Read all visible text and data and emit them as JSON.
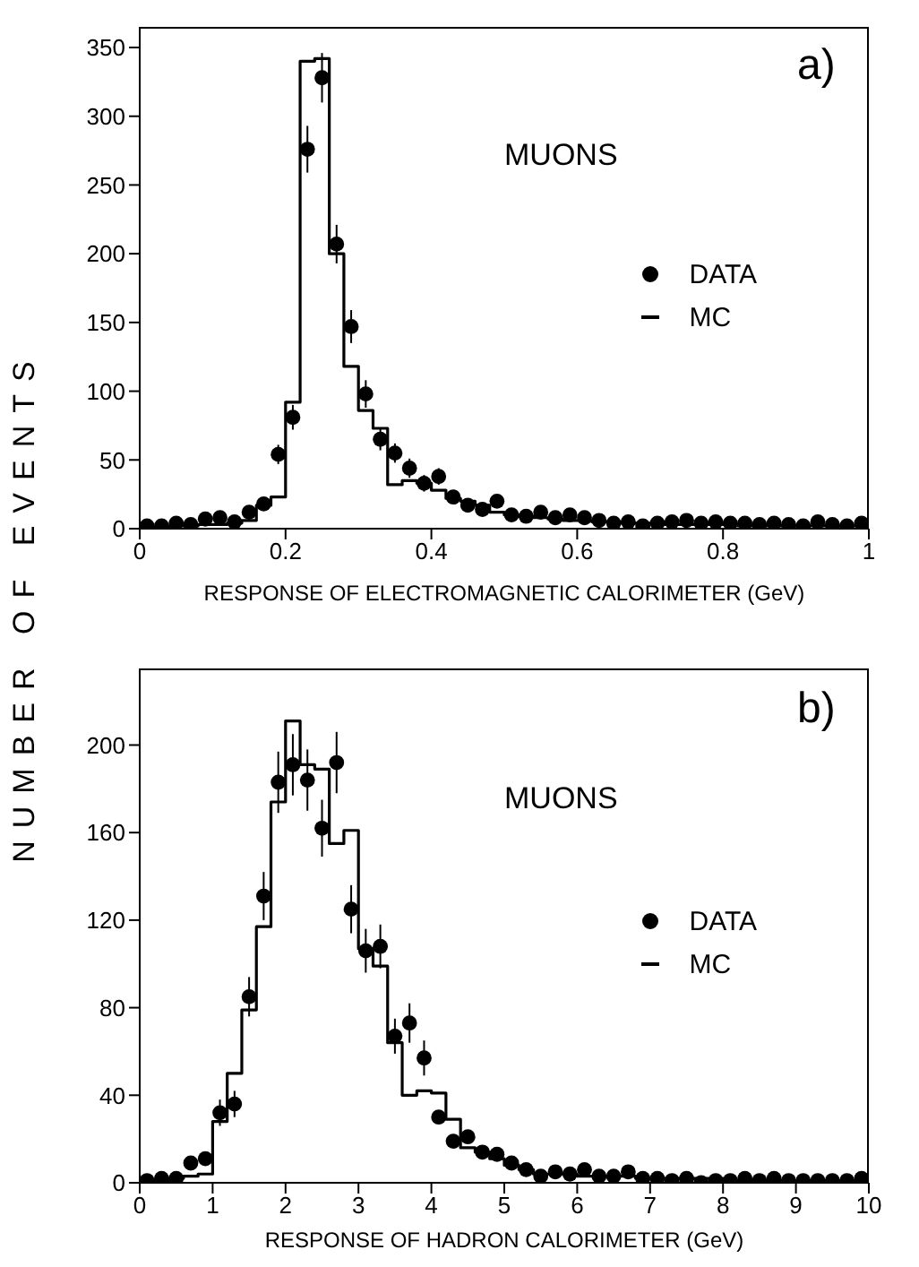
{
  "chart_data": [
    {
      "type": "histogram",
      "xlabel": "RESPONSE OF ELECTROMAGNETIC CALORIMETER (GeV)",
      "ylabel": "NUMBER OF EVENTS",
      "annotations": [
        "a)",
        "MUONS"
      ],
      "legend": "right",
      "grid": false,
      "xlim": [
        0,
        1
      ],
      "xticks": [
        0,
        0.2,
        0.4,
        0.6,
        0.8,
        1
      ],
      "ylim": [
        0,
        365
      ],
      "yticks": [
        0,
        50,
        100,
        150,
        200,
        250,
        300,
        350
      ],
      "bins": [
        0,
        0.02,
        0.04,
        0.06,
        0.08,
        0.1,
        0.12,
        0.14,
        0.16,
        0.18,
        0.2,
        0.22,
        0.24,
        0.26,
        0.28,
        0.3,
        0.32,
        0.34,
        0.36,
        0.38,
        0.4,
        0.42,
        0.44,
        0.46,
        0.48,
        0.5,
        0.52,
        0.54,
        0.56,
        0.58,
        0.6,
        0.62,
        0.64,
        0.66,
        0.68,
        0.7,
        0.72,
        0.74,
        0.76,
        0.78,
        0.8,
        0.82,
        0.84,
        0.86,
        0.88,
        0.9,
        0.92,
        0.94,
        0.96,
        0.98,
        1
      ],
      "series": [
        {
          "name": "DATA",
          "type": "scatter",
          "marker": "circle",
          "color": "#000000",
          "x": [
            0.01,
            0.03,
            0.05,
            0.07,
            0.09,
            0.11,
            0.13,
            0.15,
            0.17,
            0.19,
            0.21,
            0.23,
            0.25,
            0.27,
            0.29,
            0.31,
            0.33,
            0.35,
            0.37,
            0.39,
            0.41,
            0.43,
            0.45,
            0.47,
            0.49,
            0.51,
            0.53,
            0.55,
            0.57,
            0.59,
            0.61,
            0.63,
            0.65,
            0.67,
            0.69,
            0.71,
            0.73,
            0.75,
            0.77,
            0.79,
            0.81,
            0.83,
            0.85,
            0.87,
            0.89,
            0.91,
            0.93,
            0.95,
            0.97,
            0.99
          ],
          "values": [
            2,
            2,
            4,
            3,
            7,
            8,
            5,
            12,
            18,
            54,
            81,
            276,
            328,
            207,
            147,
            98,
            65,
            55,
            44,
            33,
            38,
            23,
            17,
            14,
            20,
            10,
            9,
            12,
            8,
            10,
            8,
            6,
            4,
            5,
            2,
            4,
            5,
            6,
            4,
            5,
            4,
            4,
            3,
            4,
            3,
            2,
            5,
            3,
            2,
            4
          ],
          "errors": [
            null,
            null,
            null,
            null,
            null,
            null,
            null,
            null,
            null,
            7,
            9,
            17,
            18,
            14,
            12,
            10,
            8,
            7,
            7,
            6,
            6,
            null,
            null,
            null,
            null,
            null,
            null,
            null,
            null,
            null,
            null,
            null,
            null,
            null,
            null,
            null,
            null,
            null,
            null,
            null,
            null,
            null,
            null,
            null,
            null,
            null,
            null,
            null,
            null,
            null
          ]
        },
        {
          "name": "MC",
          "type": "histogram",
          "color": "#000000",
          "values": [
            1,
            1,
            2,
            2,
            3,
            3,
            4,
            6,
            17,
            23,
            92,
            340,
            342,
            200,
            118,
            86,
            73,
            32,
            35,
            33,
            28,
            22,
            20,
            17,
            12,
            10,
            9,
            8,
            7,
            6,
            6,
            5,
            5,
            4,
            4,
            4,
            3,
            3,
            3,
            3,
            3,
            2,
            2,
            2,
            2,
            2,
            2,
            2,
            2,
            2
          ]
        }
      ]
    },
    {
      "type": "histogram",
      "xlabel": "RESPONSE OF HADRON CALORIMETER (GeV)",
      "annotations": [
        "b)",
        "MUONS"
      ],
      "legend": "right",
      "grid": false,
      "xlim": [
        0,
        10
      ],
      "xticks": [
        0,
        1,
        2,
        3,
        4,
        5,
        6,
        7,
        8,
        9,
        10
      ],
      "ylim": [
        0,
        235
      ],
      "yticks": [
        0,
        40,
        80,
        120,
        160,
        200
      ],
      "bins": [
        0,
        0.2,
        0.4,
        0.6,
        0.8,
        1,
        1.2,
        1.4,
        1.6,
        1.8,
        2,
        2.2,
        2.4,
        2.6,
        2.8,
        3,
        3.2,
        3.4,
        3.6,
        3.8,
        4,
        4.2,
        4.4,
        4.6,
        4.8,
        5,
        5.2,
        5.4,
        5.6,
        5.8,
        6,
        6.2,
        6.4,
        6.6,
        6.8,
        7,
        7.2,
        7.4,
        7.6,
        7.8,
        8,
        8.2,
        8.4,
        8.6,
        8.8,
        9,
        9.2,
        9.4,
        9.6,
        9.8,
        10
      ],
      "series": [
        {
          "name": "DATA",
          "type": "scatter",
          "marker": "circle",
          "color": "#000000",
          "x": [
            0.1,
            0.3,
            0.5,
            0.7,
            0.9,
            1.1,
            1.3,
            1.5,
            1.7,
            1.9,
            2.1,
            2.3,
            2.5,
            2.7,
            2.9,
            3.1,
            3.3,
            3.5,
            3.7,
            3.9,
            4.1,
            4.3,
            4.5,
            4.7,
            4.9,
            5.1,
            5.3,
            5.5,
            5.7,
            5.9,
            6.1,
            6.3,
            6.5,
            6.7,
            6.9,
            7.1,
            7.3,
            7.5,
            7.7,
            7.9,
            8.1,
            8.3,
            8.5,
            8.7,
            8.9,
            9.1,
            9.3,
            9.5,
            9.7,
            9.9
          ],
          "values": [
            1,
            2,
            2,
            9,
            11,
            32,
            36,
            85,
            131,
            183,
            191,
            184,
            162,
            192,
            125,
            106,
            108,
            67,
            73,
            57,
            30,
            19,
            21,
            14,
            13,
            9,
            6,
            3,
            5,
            4,
            6,
            3,
            3,
            5,
            2,
            2,
            1,
            2,
            0,
            1,
            1,
            2,
            1,
            2,
            1,
            1,
            1,
            1,
            1,
            2
          ],
          "errors": [
            null,
            null,
            null,
            null,
            null,
            6,
            6,
            9,
            11,
            14,
            14,
            14,
            13,
            14,
            11,
            10,
            10,
            8,
            9,
            8,
            null,
            null,
            null,
            null,
            null,
            null,
            null,
            null,
            null,
            null,
            null,
            null,
            null,
            null,
            null,
            null,
            null,
            null,
            null,
            null,
            null,
            null,
            null,
            null,
            null,
            null,
            null,
            null,
            null,
            null
          ]
        },
        {
          "name": "MC",
          "type": "histogram",
          "color": "#000000",
          "values": [
            1,
            1,
            2,
            3,
            4,
            28,
            50,
            79,
            117,
            174,
            211,
            191,
            189,
            155,
            161,
            107,
            99,
            64,
            40,
            42,
            41,
            29,
            16,
            14,
            11,
            8,
            6,
            4,
            4,
            4,
            3,
            3,
            3,
            3,
            2,
            2,
            2,
            2,
            2,
            2,
            1,
            1,
            1,
            1,
            1,
            1,
            1,
            1,
            1,
            1
          ]
        }
      ]
    }
  ]
}
